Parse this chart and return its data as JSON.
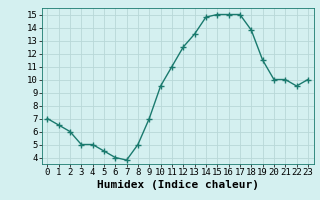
{
  "x": [
    0,
    1,
    2,
    3,
    4,
    5,
    6,
    7,
    8,
    9,
    10,
    11,
    12,
    13,
    14,
    15,
    16,
    17,
    18,
    19,
    20,
    21,
    22,
    23
  ],
  "y": [
    7.0,
    6.5,
    6.0,
    5.0,
    5.0,
    4.5,
    4.0,
    3.8,
    5.0,
    7.0,
    9.5,
    11.0,
    12.5,
    13.5,
    14.8,
    15.0,
    15.0,
    15.0,
    13.8,
    11.5,
    10.0,
    10.0,
    9.5,
    10.0
  ],
  "xlabel": "Humidex (Indice chaleur)",
  "ylim": [
    3.5,
    15.5
  ],
  "xlim": [
    -0.5,
    23.5
  ],
  "yticks": [
    4,
    5,
    6,
    7,
    8,
    9,
    10,
    11,
    12,
    13,
    14,
    15
  ],
  "xticks": [
    0,
    1,
    2,
    3,
    4,
    5,
    6,
    7,
    8,
    9,
    10,
    11,
    12,
    13,
    14,
    15,
    16,
    17,
    18,
    19,
    20,
    21,
    22,
    23
  ],
  "line_color": "#1a7a6e",
  "marker": "+",
  "marker_size": 4,
  "bg_color": "#d4f0f0",
  "grid_color": "#b8d8d8",
  "xlabel_fontsize": 8,
  "tick_fontsize": 6.5
}
